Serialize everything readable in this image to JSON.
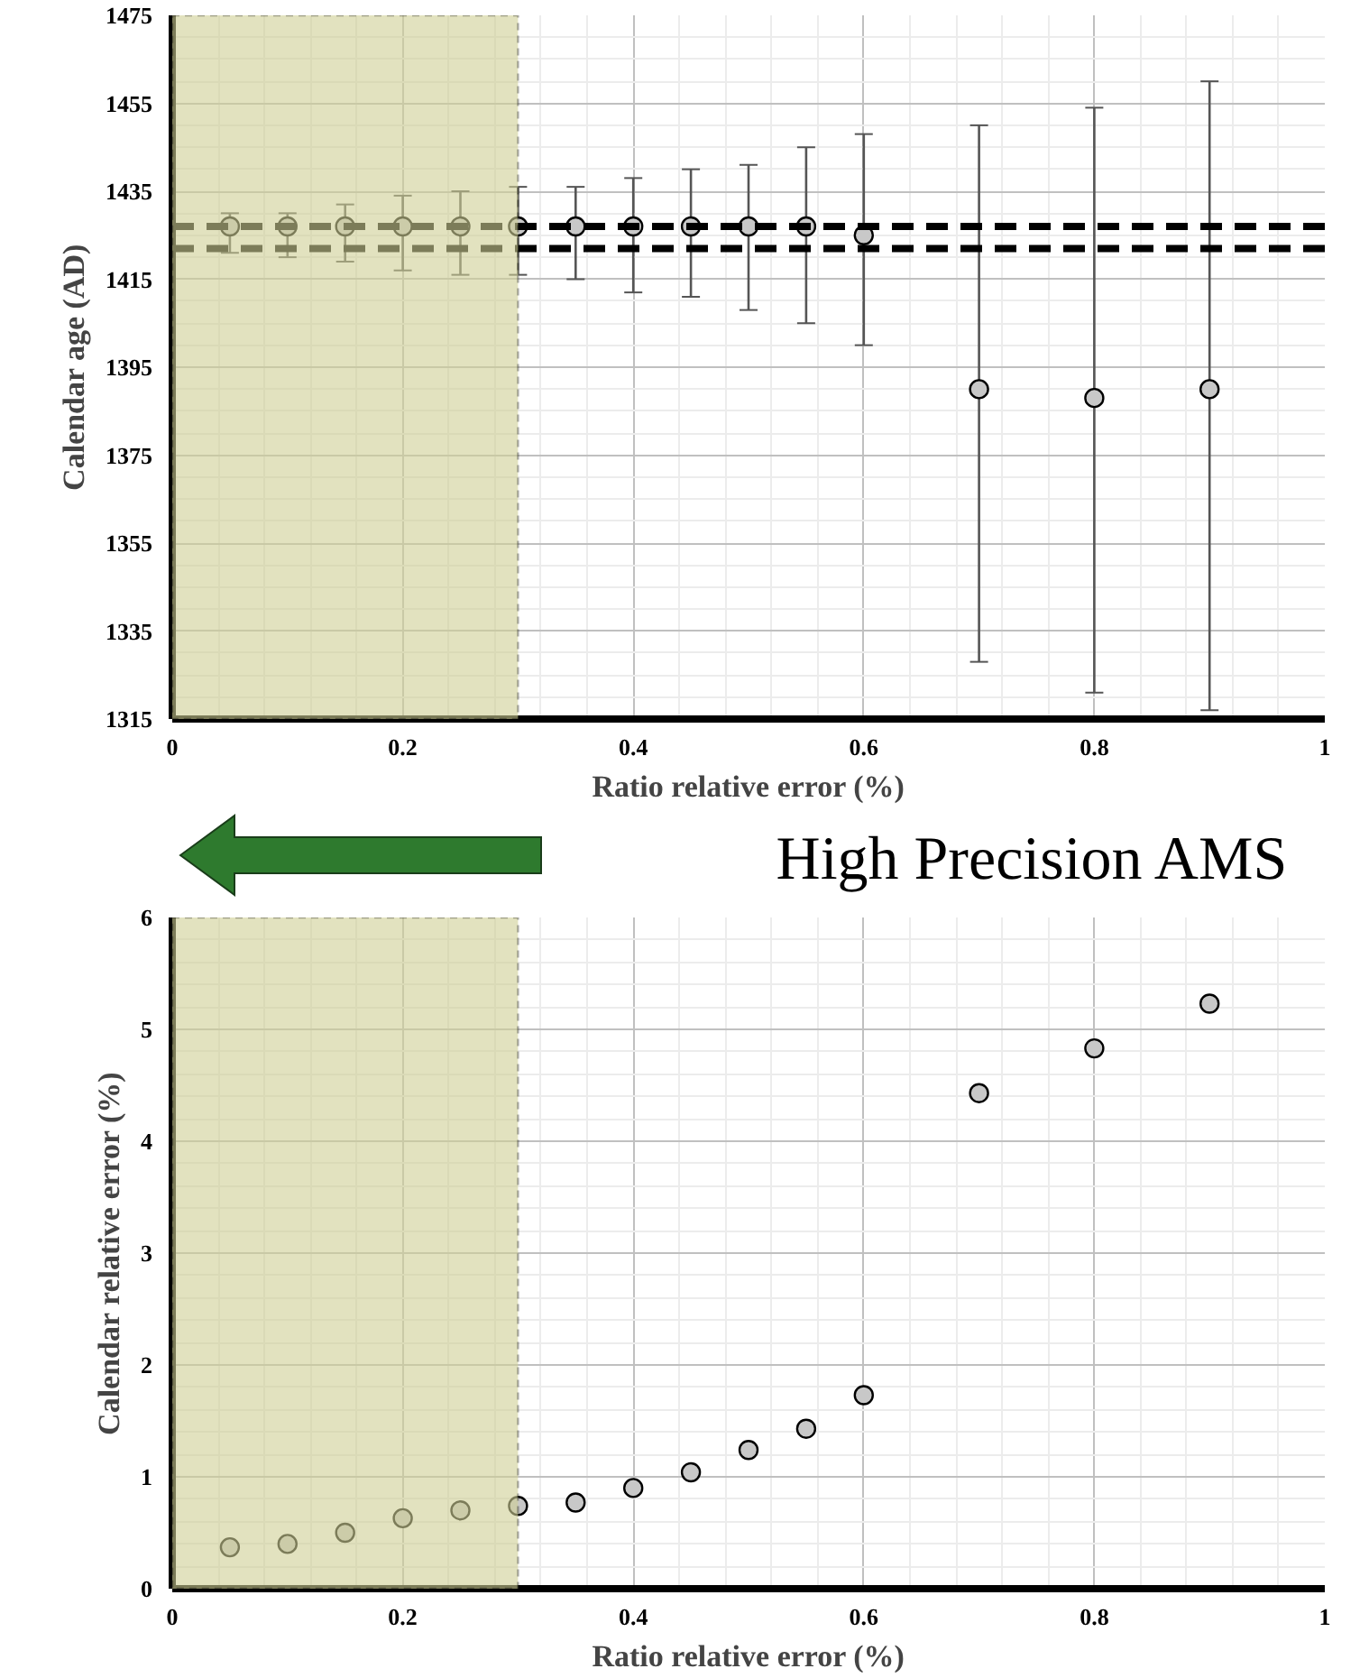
{
  "chart_data": [
    {
      "type": "scatter",
      "xlabel": "Ratio relative error (%)",
      "ylabel": "Calendar age (AD)",
      "x": [
        0.05,
        0.1,
        0.15,
        0.2,
        0.25,
        0.3,
        0.35,
        0.4,
        0.45,
        0.5,
        0.55,
        0.6,
        0.7,
        0.8,
        0.9
      ],
      "values": [
        1427,
        1427,
        1427,
        1427,
        1427,
        1427,
        1427,
        1427,
        1427,
        1427,
        1427,
        1425,
        1390,
        1388,
        1390
      ],
      "errors": [
        [
          1421,
          1430
        ],
        [
          1420,
          1430
        ],
        [
          1419,
          1432
        ],
        [
          1417,
          1434
        ],
        [
          1416,
          1435
        ],
        [
          1416,
          1436
        ],
        [
          1415,
          1436
        ],
        [
          1412,
          1438
        ],
        [
          1411,
          1440
        ],
        [
          1408,
          1441
        ],
        [
          1405,
          1445
        ],
        [
          1400,
          1448
        ],
        [
          1328,
          1450
        ],
        [
          1321,
          1454
        ],
        [
          1317,
          1460
        ]
      ],
      "color": "#c8c8c8",
      "marker": "circle",
      "ref_lines": [
        {
          "axis": "y",
          "value": 1427,
          "color": "#000000",
          "line_style": "dashed"
        },
        {
          "axis": "y",
          "value": 1422,
          "color": "#000000",
          "line_style": "dashed"
        }
      ],
      "bands": [
        {
          "axis": "x",
          "from": 0,
          "to": 0.3,
          "color": "#cfcf94"
        }
      ],
      "xlim": [
        0,
        1
      ],
      "xticks": [
        0,
        0.2,
        0.4,
        0.6,
        0.8,
        1
      ],
      "ylim": [
        1315,
        1475
      ],
      "yticks": [
        1315,
        1335,
        1355,
        1375,
        1395,
        1415,
        1435,
        1455,
        1475
      ],
      "grid": true
    },
    {
      "type": "scatter",
      "xlabel": "Ratio relative error (%)",
      "ylabel": "Calendar relative error (%)",
      "annotations": [
        "High Precision AMS"
      ],
      "x": [
        0.05,
        0.1,
        0.15,
        0.2,
        0.25,
        0.3,
        0.35,
        0.4,
        0.45,
        0.5,
        0.55,
        0.6,
        0.7,
        0.8,
        0.9
      ],
      "values": [
        0.37,
        0.4,
        0.5,
        0.63,
        0.7,
        0.74,
        0.77,
        0.9,
        1.04,
        1.24,
        1.43,
        1.73,
        4.43,
        4.83,
        5.23
      ],
      "color": "#c8c8c8",
      "marker": "circle",
      "bands": [
        {
          "axis": "x",
          "from": 0,
          "to": 0.3,
          "color": "#cfcf94"
        }
      ],
      "xlim": [
        0,
        1
      ],
      "xticks": [
        0,
        0.2,
        0.4,
        0.6,
        0.8,
        1
      ],
      "ylim": [
        0,
        6
      ],
      "yticks": [
        0,
        1,
        2,
        3,
        4,
        5,
        6
      ],
      "grid": true
    }
  ]
}
